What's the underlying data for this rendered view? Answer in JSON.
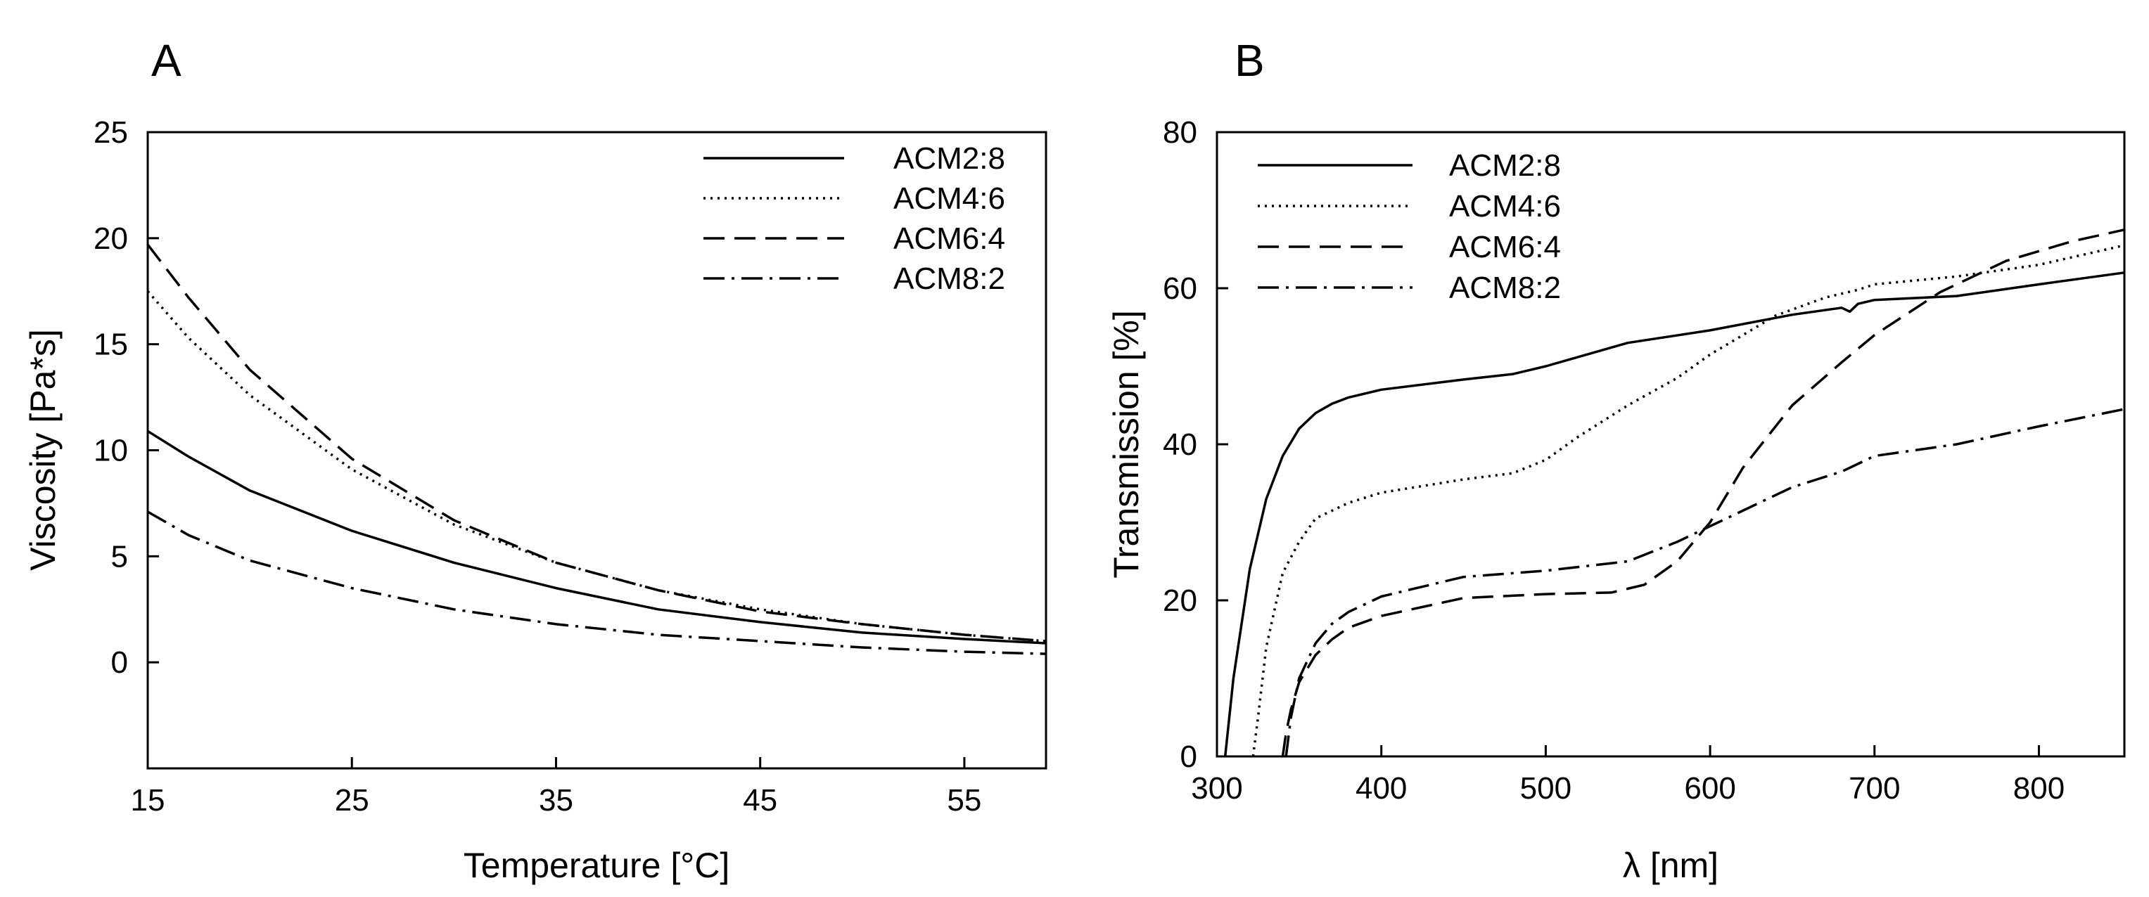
{
  "chart_data": [
    {
      "panel": "A",
      "type": "line",
      "xlabel": "Temperature [°C]",
      "ylabel": "Viscosity [Pa*s]",
      "xlim": [
        15,
        59
      ],
      "ylim": [
        -5,
        25
      ],
      "xticks": [
        15,
        25,
        35,
        45,
        55
      ],
      "yticks": [
        0,
        5,
        10,
        15,
        20,
        25
      ],
      "legend_position": "top-right",
      "series": [
        {
          "name": "ACM2:8",
          "dash": "solid",
          "x": [
            15,
            17,
            20,
            25,
            30,
            35,
            40,
            45,
            50,
            55,
            59
          ],
          "y": [
            10.9,
            9.7,
            8.1,
            6.2,
            4.7,
            3.5,
            2.5,
            1.9,
            1.4,
            1.1,
            0.9
          ]
        },
        {
          "name": "ACM4:6",
          "dash": "dot",
          "x": [
            15,
            17,
            20,
            25,
            30,
            35,
            40,
            45,
            50,
            55,
            59
          ],
          "y": [
            17.5,
            15.3,
            12.6,
            9.1,
            6.5,
            4.7,
            3.4,
            2.5,
            1.8,
            1.3,
            1.0
          ]
        },
        {
          "name": "ACM6:4",
          "dash": "dash",
          "x": [
            15,
            17,
            20,
            25,
            30,
            35,
            40,
            45,
            50,
            55,
            59
          ],
          "y": [
            19.7,
            17.2,
            13.8,
            9.6,
            6.7,
            4.7,
            3.4,
            2.4,
            1.8,
            1.3,
            1.0
          ]
        },
        {
          "name": "ACM8:2",
          "dash": "dashdot",
          "x": [
            15,
            17,
            20,
            25,
            30,
            35,
            40,
            45,
            50,
            55,
            59
          ],
          "y": [
            7.1,
            6.0,
            4.8,
            3.5,
            2.5,
            1.8,
            1.3,
            1.0,
            0.7,
            0.5,
            0.4
          ]
        }
      ]
    },
    {
      "panel": "B",
      "type": "line",
      "xlabel": "λ [nm]",
      "ylabel": "Transmission [%]",
      "xlim": [
        300,
        852
      ],
      "ylim": [
        0,
        80
      ],
      "xticks": [
        300,
        400,
        500,
        600,
        700,
        800
      ],
      "yticks": [
        0,
        20,
        40,
        60,
        80
      ],
      "legend_position": "top-left",
      "series": [
        {
          "name": "ACM2:8",
          "dash": "solid",
          "x": [
            305,
            310,
            320,
            330,
            340,
            350,
            360,
            370,
            380,
            400,
            450,
            480,
            500,
            550,
            600,
            650,
            680,
            685,
            690,
            700,
            750,
            800,
            852
          ],
          "y": [
            0,
            10,
            24,
            33,
            38.5,
            42,
            44,
            45.2,
            46,
            47,
            48.3,
            49,
            50,
            53,
            54.6,
            56.6,
            57.5,
            57,
            58,
            58.5,
            59,
            60.5,
            62
          ]
        },
        {
          "name": "ACM4:6",
          "dash": "dot",
          "x": [
            322,
            325,
            330,
            340,
            350,
            360,
            380,
            400,
            450,
            480,
            500,
            520,
            550,
            580,
            600,
            640,
            670,
            690,
            700,
            750,
            800,
            852
          ],
          "y": [
            0,
            5,
            14,
            23.5,
            27.5,
            30.5,
            32.5,
            33.8,
            35.5,
            36.3,
            38,
            41,
            45,
            48.5,
            51.5,
            56.5,
            58.8,
            59.8,
            60.5,
            61.5,
            63,
            65.5
          ]
        },
        {
          "name": "ACM6:4",
          "dash": "dash",
          "x": [
            340,
            342,
            345,
            350,
            360,
            370,
            380,
            400,
            450,
            500,
            540,
            560,
            580,
            600,
            620,
            650,
            680,
            700,
            740,
            780,
            820,
            852
          ],
          "y": [
            0,
            3,
            6,
            9.5,
            13,
            15,
            16.5,
            18,
            20.3,
            20.8,
            21,
            22,
            25,
            30,
            37,
            45,
            50.5,
            54,
            59.5,
            63.5,
            66,
            67.5
          ]
        },
        {
          "name": "ACM8:2",
          "dash": "dashdot",
          "x": [
            342,
            345,
            350,
            360,
            370,
            380,
            400,
            430,
            450,
            500,
            550,
            580,
            600,
            650,
            680,
            700,
            750,
            800,
            852
          ],
          "y": [
            0,
            5,
            10,
            14.5,
            17,
            18.5,
            20.5,
            22,
            23,
            23.8,
            25,
            27.5,
            29.5,
            34.5,
            36.5,
            38.5,
            40,
            42.3,
            44.5
          ]
        }
      ]
    }
  ],
  "panels": [
    {
      "letter": "A"
    },
    {
      "letter": "B"
    }
  ]
}
